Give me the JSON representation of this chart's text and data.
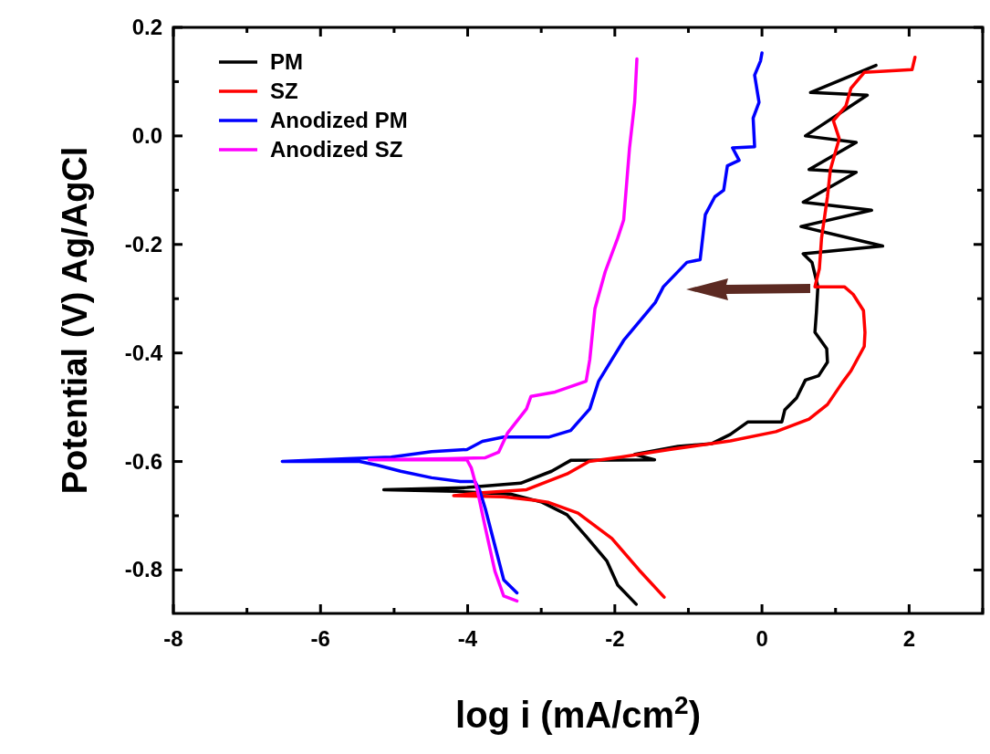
{
  "chart_data": {
    "type": "line",
    "xlabel": "log i (mA/cm$^{2}$)",
    "ylabel": "Potential (V) Ag/AgCl",
    "xlim": [
      -8,
      3
    ],
    "ylim": [
      -0.88,
      0.2
    ],
    "xticks": [
      -8,
      -6,
      -4,
      -2,
      0,
      2
    ],
    "yticks": [
      0.2,
      {
        "value": 0,
        "label": "0.0"
      },
      -0.2,
      -0.4,
      -0.6,
      -0.8
    ],
    "legend": "top left",
    "grid": false,
    "line_style": "solid",
    "series": [
      {
        "name": "PM",
        "color": "#000000",
        "x": [
          -1.71,
          -1.96,
          -2.11,
          -2.39,
          -2.65,
          -2.99,
          -3.42,
          -4.15,
          -5.14,
          -4.52,
          -4.01,
          -3.28,
          -2.86,
          -2.6,
          -1.46,
          -1.73,
          -1.14,
          -0.68,
          -0.43,
          -0.19,
          0.27,
          0.31,
          0.47,
          0.59,
          0.77,
          0.89,
          0.88,
          0.72,
          0.74,
          0.76,
          0.68,
          0.56,
          1.64,
          0.53,
          1.49,
          0.56,
          1.28,
          0.64,
          1.28,
          0.59,
          1.43,
          0.66,
          1.55
        ],
        "values": [
          -0.863,
          -0.828,
          -0.783,
          -0.738,
          -0.698,
          -0.675,
          -0.66,
          -0.655,
          -0.652,
          -0.65,
          -0.648,
          -0.64,
          -0.618,
          -0.598,
          -0.597,
          -0.587,
          -0.572,
          -0.567,
          -0.55,
          -0.527,
          -0.527,
          -0.505,
          -0.483,
          -0.45,
          -0.442,
          -0.417,
          -0.392,
          -0.362,
          -0.325,
          -0.278,
          -0.233,
          -0.217,
          -0.203,
          -0.167,
          -0.137,
          -0.122,
          -0.067,
          -0.062,
          -0.012,
          0.0,
          0.075,
          0.08,
          0.13
        ]
      },
      {
        "name": "SZ",
        "color": "#ff0000",
        "x": [
          -1.33,
          -1.67,
          -2.04,
          -2.5,
          -2.91,
          -3.07,
          -3.51,
          -4.19,
          -3.84,
          -3.2,
          -2.65,
          -2.35,
          -1.92,
          -1.26,
          -0.43,
          0.19,
          0.64,
          0.89,
          1.09,
          1.21,
          1.39,
          1.4,
          1.38,
          1.24,
          1.12,
          0.72,
          0.78,
          0.81,
          0.89,
          0.93,
          1.05,
          0.97,
          1.14,
          1.21,
          1.39,
          2.04,
          2.08
        ],
        "values": [
          -0.85,
          -0.8,
          -0.742,
          -0.695,
          -0.675,
          -0.672,
          -0.665,
          -0.663,
          -0.658,
          -0.652,
          -0.623,
          -0.6,
          -0.592,
          -0.578,
          -0.562,
          -0.545,
          -0.522,
          -0.495,
          -0.455,
          -0.433,
          -0.388,
          -0.362,
          -0.322,
          -0.292,
          -0.278,
          -0.278,
          -0.245,
          -0.188,
          -0.112,
          -0.062,
          -0.005,
          0.028,
          0.055,
          0.088,
          0.117,
          0.122,
          0.145
        ]
      },
      {
        "name": "Anodized PM",
        "color": "#0000ff",
        "x": [
          -3.33,
          -3.51,
          -3.63,
          -3.76,
          -3.84,
          -3.9,
          -4.1,
          -4.49,
          -4.91,
          -5.22,
          -5.47,
          -6.52,
          -5.64,
          -5.04,
          -4.49,
          -4.01,
          -3.8,
          -3.51,
          -2.9,
          -2.6,
          -2.34,
          -2.22,
          -2.04,
          -1.88,
          -1.45,
          -1.34,
          -1.02,
          -0.84,
          -0.77,
          -0.64,
          -0.52,
          -0.47,
          -0.31,
          -0.4,
          -0.1,
          -0.12,
          -0.04,
          -0.1,
          -0.02,
          0.0
        ],
        "values": [
          -0.842,
          -0.818,
          -0.755,
          -0.687,
          -0.652,
          -0.637,
          -0.637,
          -0.63,
          -0.618,
          -0.607,
          -0.6,
          -0.6,
          -0.595,
          -0.592,
          -0.582,
          -0.578,
          -0.563,
          -0.555,
          -0.555,
          -0.543,
          -0.503,
          -0.452,
          -0.412,
          -0.377,
          -0.307,
          -0.278,
          -0.233,
          -0.228,
          -0.145,
          -0.112,
          -0.1,
          -0.055,
          -0.045,
          -0.022,
          -0.02,
          0.033,
          0.062,
          0.112,
          0.138,
          0.153
        ]
      },
      {
        "name": "Anodized SZ",
        "color": "#ff00ff",
        "x": [
          -3.33,
          -3.51,
          -3.63,
          -3.76,
          -3.87,
          -3.95,
          -4.01,
          -5.34,
          -4.27,
          -3.76,
          -3.58,
          -3.46,
          -3.2,
          -3.14,
          -2.81,
          -2.39,
          -2.34,
          -2.27,
          -2.13,
          -1.96,
          -1.88,
          -1.8,
          -1.73,
          -1.7
        ],
        "values": [
          -0.857,
          -0.848,
          -0.802,
          -0.722,
          -0.652,
          -0.612,
          -0.597,
          -0.597,
          -0.595,
          -0.593,
          -0.583,
          -0.548,
          -0.503,
          -0.48,
          -0.472,
          -0.452,
          -0.412,
          -0.318,
          -0.25,
          -0.188,
          -0.155,
          -0.022,
          0.062,
          0.142
        ]
      }
    ]
  }
}
